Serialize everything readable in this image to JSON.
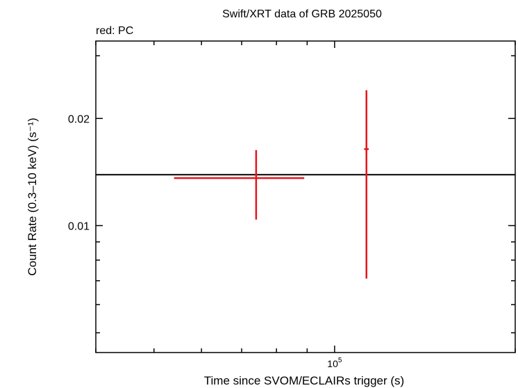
{
  "chart_data": {
    "type": "scatter",
    "title": "Swift/XRT data of GRB 2025050",
    "subtitle": "red: PC",
    "xlabel": "Time since SVOM/ECLAIRs trigger (s)",
    "ylabel": "Count Rate (0.3–10 keV) (s⁻¹)",
    "x_scale": "log",
    "y_scale": "log",
    "xlim": [
      40000,
      200000
    ],
    "ylim": [
      0.0044,
      0.033
    ],
    "x_ticks": [
      {
        "value": 100000,
        "base": "10",
        "exp": "5"
      }
    ],
    "y_ticks": [
      {
        "value": 0.01,
        "label": "0.01"
      },
      {
        "value": 0.02,
        "label": "0.02"
      }
    ],
    "grid": false,
    "series": [
      {
        "color": "#e8141b",
        "points": [
          {
            "x": 74000,
            "x_lo": 54000,
            "x_hi": 89000,
            "y": 0.0136,
            "y_lo": 0.0104,
            "y_hi": 0.0163
          },
          {
            "x": 113000,
            "x_lo": 112000,
            "x_hi": 114000,
            "y": 0.0164,
            "y_lo": 0.0071,
            "y_hi": 0.024
          }
        ]
      }
    ],
    "reference_line": {
      "y": 0.0139,
      "color": "#000000"
    }
  }
}
